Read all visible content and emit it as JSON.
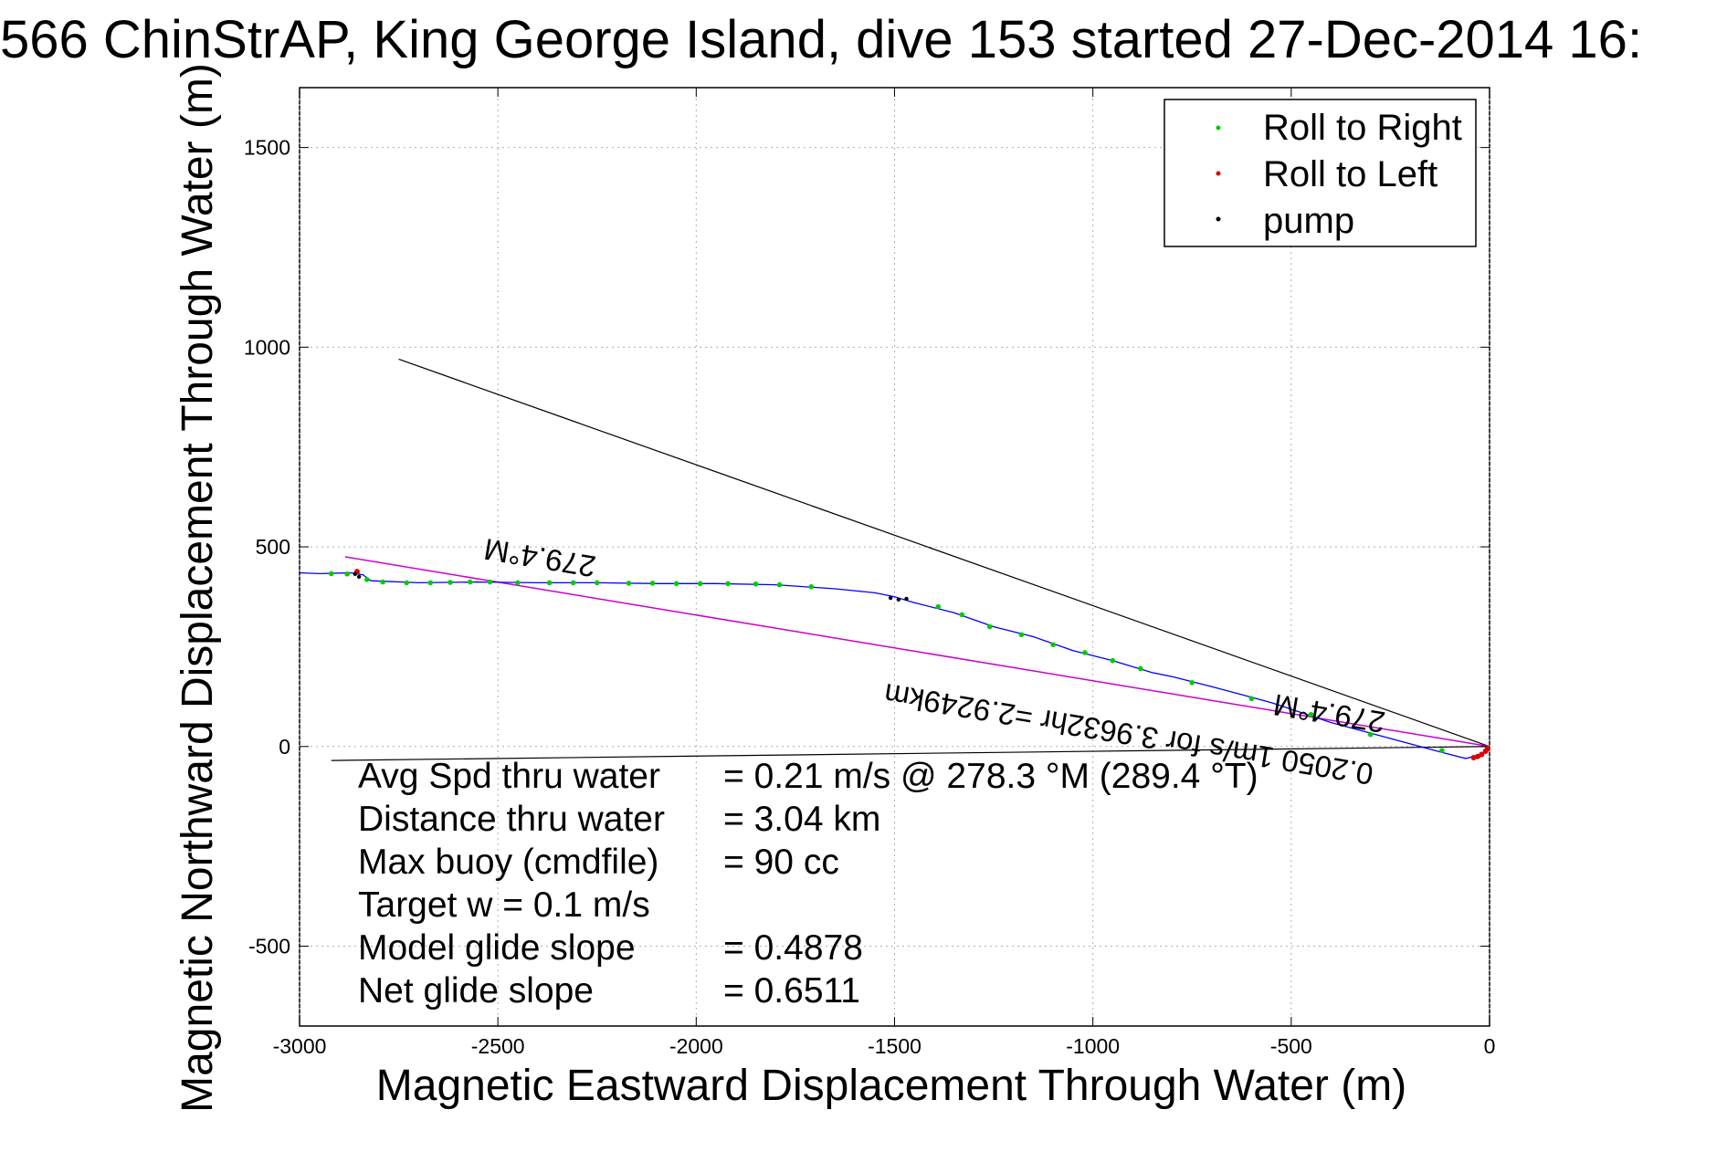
{
  "chart_data": {
    "type": "line",
    "title": "566 ChinStrAP, King George Island, dive 153 started 27-Dec-2014 16:",
    "xlabel": "Magnetic Eastward Displacement Through Water (m)",
    "ylabel": "Magnetic Northward Displacement Through Water (m)",
    "xlim": [
      -3000,
      0
    ],
    "ylim": [
      -700,
      1650
    ],
    "xticks": [
      -3000,
      -2500,
      -2000,
      -1500,
      -1000,
      -500,
      0
    ],
    "xtick_labels": [
      "-3000",
      "-2500",
      "-2000",
      "-1500",
      "-1000",
      "-500",
      "0"
    ],
    "yticks": [
      -500,
      0,
      500,
      1000,
      1500
    ],
    "ytick_labels": [
      "-500",
      "0",
      "500",
      "1000",
      "1500"
    ],
    "grid": true,
    "legend_position": "top-right",
    "legend": [
      {
        "label": "Roll to Right",
        "color": "#00cc00"
      },
      {
        "label": "Roll to Left",
        "color": "#dd0000"
      },
      {
        "label": "pump",
        "color": "#000000"
      }
    ],
    "track": {
      "color": "#0000ff",
      "points": [
        [
          0,
          0
        ],
        [
          -20,
          -20
        ],
        [
          -60,
          -30
        ],
        [
          -120,
          -15
        ],
        [
          -250,
          20
        ],
        [
          -400,
          60
        ],
        [
          -550,
          110
        ],
        [
          -700,
          150
        ],
        [
          -800,
          175
        ],
        [
          -850,
          185
        ],
        [
          -950,
          215
        ],
        [
          -1050,
          240
        ],
        [
          -1150,
          275
        ],
        [
          -1250,
          300
        ],
        [
          -1350,
          335
        ],
        [
          -1450,
          360
        ],
        [
          -1500,
          375
        ],
        [
          -1550,
          385
        ],
        [
          -1650,
          395
        ],
        [
          -1800,
          405
        ],
        [
          -1950,
          408
        ],
        [
          -2100,
          408
        ],
        [
          -2250,
          410
        ],
        [
          -2400,
          410
        ],
        [
          -2550,
          412
        ],
        [
          -2700,
          410
        ],
        [
          -2820,
          415
        ],
        [
          -2840,
          430
        ],
        [
          -2870,
          435
        ],
        [
          -2950,
          433
        ],
        [
          -3000,
          435
        ]
      ]
    },
    "roll_right_points": [
      [
        -120,
        -10
      ],
      [
        -300,
        30
      ],
      [
        -450,
        80
      ],
      [
        -600,
        120
      ],
      [
        -750,
        160
      ],
      [
        -880,
        195
      ],
      [
        -950,
        215
      ],
      [
        -1020,
        235
      ],
      [
        -1100,
        255
      ],
      [
        -1180,
        280
      ],
      [
        -1260,
        300
      ],
      [
        -1330,
        330
      ],
      [
        -1390,
        350
      ],
      [
        -1710,
        400
      ],
      [
        -1790,
        405
      ],
      [
        -1850,
        407
      ],
      [
        -1920,
        408
      ],
      [
        -1990,
        408
      ],
      [
        -2050,
        408
      ],
      [
        -2110,
        409
      ],
      [
        -2170,
        409
      ],
      [
        -2250,
        410
      ],
      [
        -2310,
        410
      ],
      [
        -2370,
        410
      ],
      [
        -2450,
        410
      ],
      [
        -2520,
        412
      ],
      [
        -2570,
        412
      ],
      [
        -2620,
        411
      ],
      [
        -2670,
        410
      ],
      [
        -2730,
        410
      ],
      [
        -2790,
        412
      ],
      [
        -2830,
        418
      ],
      [
        -2880,
        432
      ],
      [
        -2920,
        433
      ]
    ],
    "roll_left_points": [
      [
        -5,
        -5
      ],
      [
        -10,
        -12
      ],
      [
        -20,
        -20
      ],
      [
        -30,
        -25
      ],
      [
        -40,
        -28
      ],
      [
        -2855,
        438
      ]
    ],
    "pump_points": [
      [
        -1470,
        370
      ],
      [
        -1490,
        368
      ],
      [
        -1510,
        372
      ],
      [
        -2850,
        425
      ],
      [
        -2860,
        432
      ]
    ],
    "heading_line": {
      "color": "#000000",
      "from": [
        0,
        0
      ],
      "to": [
        -2750,
        970
      ]
    },
    "heading_line_label": "279.4°M",
    "net_line": {
      "color": "#cc00cc",
      "from": [
        0,
        0
      ],
      "to": [
        -2885,
        475
      ]
    },
    "net_line_label": "279.4°M",
    "net_line_label_2": "0.2050 1m/s for 3.9632hr =2.9249km",
    "baseline": {
      "color": "#000000",
      "from": [
        0,
        0
      ],
      "to": [
        -2920,
        -35
      ]
    },
    "stats": [
      {
        "label": "Avg Spd thru water",
        "value": "=  0.21 m/s @ 278.3 °M (289.4 °T)"
      },
      {
        "label": "Distance thru water",
        "value": "=  3.04 km"
      },
      {
        "label": "Max buoy (cmdfile)",
        "value": "= 90 cc"
      },
      {
        "label": "Target w    = 0.1 m/s",
        "value": ""
      },
      {
        "label": "Model glide slope",
        "value": "= 0.4878"
      },
      {
        "label": "Net glide slope",
        "value": "= 0.6511"
      }
    ]
  }
}
